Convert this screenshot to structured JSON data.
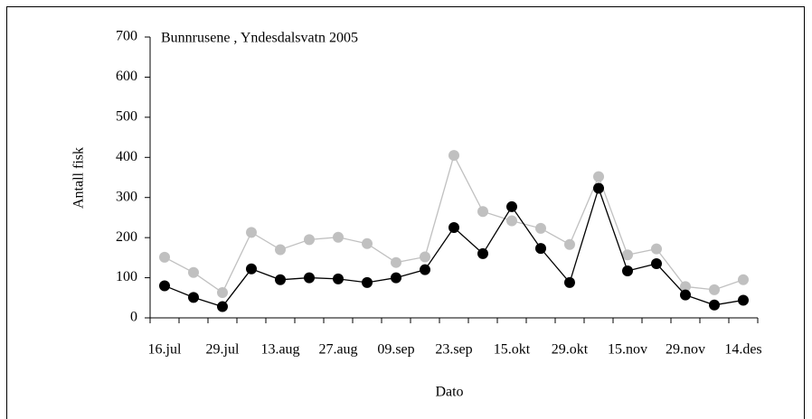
{
  "chart_data": {
    "type": "line",
    "title": "Bunnrusene , Yndesdalsvatn 2005",
    "x_label": "Dato",
    "y_label": "Antall fisk",
    "categories": [
      "16.jul",
      null,
      "29.jul",
      null,
      "13.aug",
      null,
      "27.aug",
      null,
      "09.sep",
      null,
      "23.sep",
      null,
      "15.okt",
      null,
      "29.okt",
      null,
      "15.nov",
      null,
      "29.nov",
      null,
      "14.des"
    ],
    "series": [
      {
        "color": "#c0c0c0",
        "values": [
          151,
          113,
          63,
          213,
          170,
          195,
          201,
          185,
          138,
          152,
          405,
          265,
          242,
          223,
          183,
          352,
          157,
          172,
          78,
          70,
          95
        ]
      },
      {
        "color": "#000000",
        "values": [
          80,
          51,
          28,
          122,
          95,
          100,
          97,
          88,
          100,
          120,
          225,
          160,
          277,
          173,
          88,
          323,
          117,
          135,
          57,
          32,
          44
        ]
      }
    ],
    "ylim": [
      0,
      700
    ],
    "yticks": [
      0,
      100,
      200,
      300,
      400,
      500,
      600,
      700
    ],
    "grid": false
  }
}
